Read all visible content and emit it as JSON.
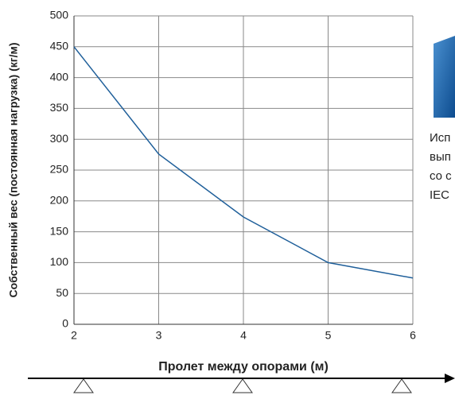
{
  "chart_data": {
    "type": "line",
    "x_label": "Пролет между опорами (м)",
    "y_label": "Собственный вес (постоянная нагрузка)  (кг/м)",
    "x": [
      2,
      3,
      4,
      5,
      6
    ],
    "series": [
      {
        "name": "Собственный вес",
        "color": "#1f5f9a",
        "values": [
          450,
          276,
          174,
          100,
          75
        ]
      }
    ],
    "xlim": [
      2,
      6
    ],
    "xticks": [
      2,
      3,
      4,
      5,
      6
    ],
    "ylim": [
      0,
      500
    ],
    "yticks": [
      0,
      50,
      100,
      150,
      200,
      250,
      300,
      350,
      400,
      450,
      500
    ],
    "grid": true,
    "annotations": [
      "Исп",
      "вып",
      "со с",
      "IEC"
    ]
  }
}
